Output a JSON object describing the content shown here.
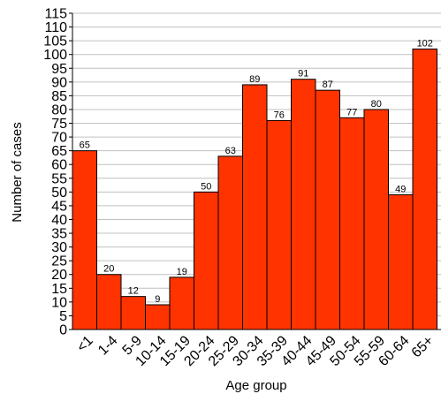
{
  "chart_data": {
    "type": "bar",
    "title": "",
    "xlabel": "Age group",
    "ylabel": "Number of cases",
    "categories": [
      "<1",
      "1-4",
      "5-9",
      "10-14",
      "15-19",
      "20-24",
      "25-29",
      "30-34",
      "35-39",
      "40-44",
      "45-49",
      "50-54",
      "55-59",
      "60-64",
      "65+"
    ],
    "values": [
      65,
      20,
      12,
      9,
      19,
      50,
      63,
      89,
      76,
      91,
      87,
      77,
      80,
      49,
      102
    ],
    "ylim": [
      0,
      115
    ],
    "ytick_step": 5,
    "grid": true,
    "legend": "none",
    "colors": {
      "bar_fill": "#ff3300",
      "bar_stroke": "#000000",
      "grid": "#c0c0c0"
    }
  }
}
